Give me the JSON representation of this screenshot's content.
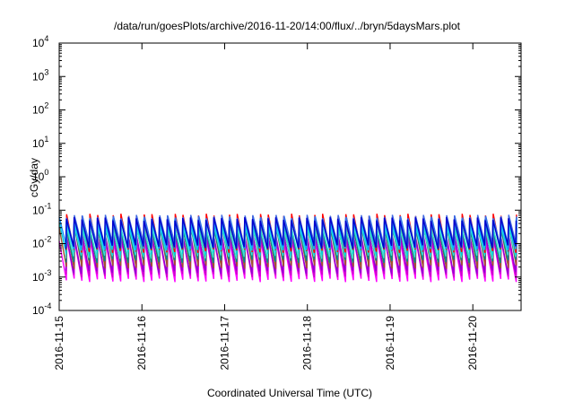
{
  "chart_data": {
    "type": "line",
    "title": "/data/run/goesPlots/archive/2016-11-20/14:00/flux/../bryn/5daysMars.plot",
    "xlabel": "Coordinated Universal Time (UTC)",
    "ylabel": "cGy/day",
    "yscale": "log",
    "ylim": [
      0.0001,
      10000
    ],
    "xlim": [
      "2016-11-15T00:00",
      "2016-11-20T14:00"
    ],
    "grid": false,
    "legend": "none",
    "y_ticks": [
      {
        "base": "10",
        "exp": "-4",
        "value": 0.0001
      },
      {
        "base": "10",
        "exp": "-3",
        "value": 0.001
      },
      {
        "base": "10",
        "exp": "-2",
        "value": 0.01
      },
      {
        "base": "10",
        "exp": "-1",
        "value": 0.1
      },
      {
        "base": "10",
        "exp": "0",
        "value": 1
      },
      {
        "base": "10",
        "exp": "1",
        "value": 10
      },
      {
        "base": "10",
        "exp": "2",
        "value": 100
      },
      {
        "base": "10",
        "exp": "3",
        "value": 1000
      },
      {
        "base": "10",
        "exp": "4",
        "value": 10000
      }
    ],
    "x_ticks": [
      {
        "label": "2016-11-15",
        "value": "2016-11-15T00:00"
      },
      {
        "label": "2016-11-16",
        "value": "2016-11-16T00:00"
      },
      {
        "label": "2016-11-17",
        "value": "2016-11-17T00:00"
      },
      {
        "label": "2016-11-18",
        "value": "2016-11-18T00:00"
      },
      {
        "label": "2016-11-19",
        "value": "2016-11-19T00:00"
      },
      {
        "label": "2016-11-20",
        "value": "2016-11-20T00:00"
      }
    ],
    "sawtooth_period_hours": 2.25,
    "series": [
      {
        "color": "#ff00ff",
        "peak": 0.012,
        "trough": 0.0008
      },
      {
        "color": "#cc00cc",
        "peak": 0.016,
        "trough": 0.0011
      },
      {
        "color": "#9400d3",
        "peak": 0.02,
        "trough": 0.0014
      },
      {
        "color": "#a0522d",
        "peak": 0.03,
        "trough": 0.002
      },
      {
        "color": "#008b8b",
        "peak": 0.028,
        "trough": 0.003
      },
      {
        "color": "#40e0d0",
        "peak": 0.035,
        "trough": 0.004
      },
      {
        "color": "#00ced1",
        "peak": 0.045,
        "trough": 0.005
      },
      {
        "color": "#ff0000",
        "peak": 0.07,
        "trough": 0.006
      },
      {
        "color": "#00bfff",
        "peak": 0.05,
        "trough": 0.007
      },
      {
        "color": "#1e90ff",
        "peak": 0.06,
        "trough": 0.008
      },
      {
        "color": "#4169e1",
        "peak": 0.065,
        "trough": 0.009
      },
      {
        "color": "#0000cd",
        "peak": 0.055,
        "trough": 0.008
      }
    ]
  }
}
